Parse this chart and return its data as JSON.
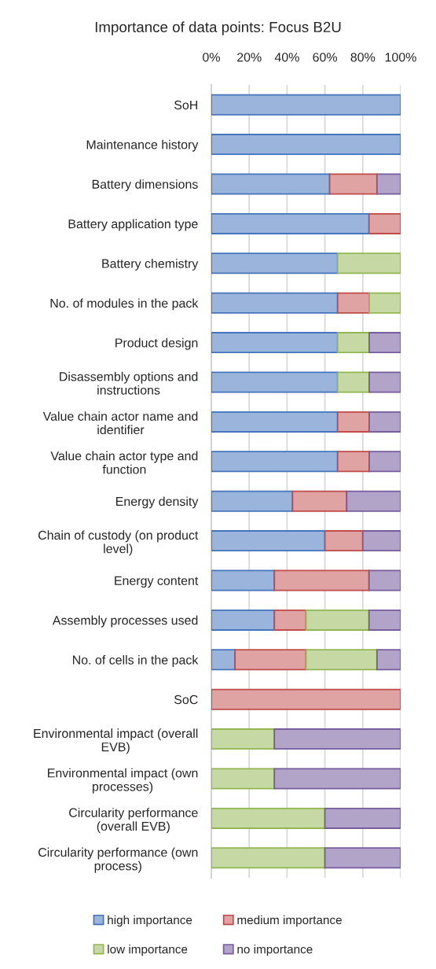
{
  "chart_data": {
    "type": "bar",
    "orientation": "horizontal",
    "stacked": true,
    "title": "Importance of data points: Focus B2U",
    "categories": [
      "SoH",
      "Maintenance history",
      "Battery dimensions",
      "Battery application type",
      "Battery chemistry",
      "No. of modules in the pack",
      "Product design",
      "Disassembly options and instructions",
      "Value chain actor name and identifier",
      "Value chain actor type and function",
      "Energy density",
      "Chain of custody (on product level)",
      "Energy content",
      "Assembly processes used",
      "No. of cells in the pack",
      "SoC",
      "Environmental impact (overall EVB)",
      "Environmental impact (own processes)",
      "Circularity performance (overall EVB)",
      "Circularity performance (own process)"
    ],
    "series": [
      {
        "name": "high importance",
        "color": "#9bb4db",
        "values": [
          100,
          100,
          62.5,
          83.3,
          66.7,
          66.7,
          66.7,
          66.7,
          66.7,
          66.7,
          42.9,
          60,
          33.3,
          33.3,
          12.5,
          null,
          null,
          null,
          null,
          null
        ]
      },
      {
        "name": "medium importance",
        "color": "#dea3a2",
        "values": [
          null,
          null,
          25,
          16.7,
          null,
          16.7,
          null,
          null,
          16.7,
          16.7,
          28.6,
          20,
          50,
          16.7,
          37.5,
          100,
          null,
          null,
          null,
          null
        ]
      },
      {
        "name": "low importance",
        "color": "#c6d9a4",
        "values": [
          null,
          null,
          null,
          null,
          33.3,
          16.6,
          16.7,
          16.7,
          null,
          null,
          null,
          null,
          null,
          33.3,
          37.5,
          null,
          33.3,
          33.3,
          60,
          60
        ]
      },
      {
        "name": "no importance",
        "color": "#b2a3c9",
        "values": [
          null,
          null,
          12.5,
          null,
          null,
          null,
          16.6,
          16.6,
          16.6,
          16.6,
          28.5,
          20,
          16.7,
          16.7,
          12.5,
          null,
          66.7,
          66.7,
          40,
          40
        ]
      }
    ],
    "xlim": [
      0,
      100
    ],
    "xticks": [
      {
        "value": 0,
        "label": "0%"
      },
      {
        "value": 20,
        "label": "20%"
      },
      {
        "value": 40,
        "label": "40%"
      },
      {
        "value": 60,
        "label": "60%"
      },
      {
        "value": 80,
        "label": "80%"
      },
      {
        "value": 100,
        "label": "100%"
      }
    ],
    "grid": "x",
    "legend": "bottom"
  }
}
